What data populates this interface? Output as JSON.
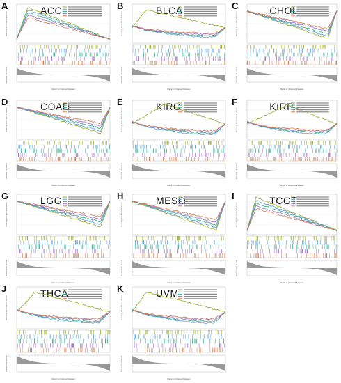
{
  "figure": {
    "x_axis_label": "Rank in Ordered Dataset",
    "y_axis_top_label": "Running Enrichment Score",
    "y_axis_bottom_label": "Ranked list metric"
  },
  "chart_data": [
    {
      "letter": "A",
      "title": "ACC",
      "type": "line",
      "series_count": 5
    },
    {
      "letter": "B",
      "title": "BLCA",
      "type": "line",
      "series_count": 5
    },
    {
      "letter": "C",
      "title": "CHOL",
      "type": "line",
      "series_count": 5
    },
    {
      "letter": "D",
      "title": "COAD",
      "type": "line",
      "series_count": 5
    },
    {
      "letter": "E",
      "title": "KIRC",
      "type": "line",
      "series_count": 5
    },
    {
      "letter": "F",
      "title": "KIRP",
      "type": "line",
      "series_count": 5
    },
    {
      "letter": "G",
      "title": "LGG",
      "type": "line",
      "series_count": 5
    },
    {
      "letter": "H",
      "title": "MESO",
      "type": "line",
      "series_count": 5
    },
    {
      "letter": "I",
      "title": "TCGT",
      "type": "line",
      "series_count": 5
    },
    {
      "letter": "J",
      "title": "THCA",
      "type": "line",
      "series_count": 5
    },
    {
      "letter": "K",
      "title": "UVM",
      "type": "line",
      "series_count": 5
    }
  ],
  "colors": [
    "#9aa827",
    "#5a9fd6",
    "#2fa889",
    "#a06ed0",
    "#d07a4a"
  ]
}
